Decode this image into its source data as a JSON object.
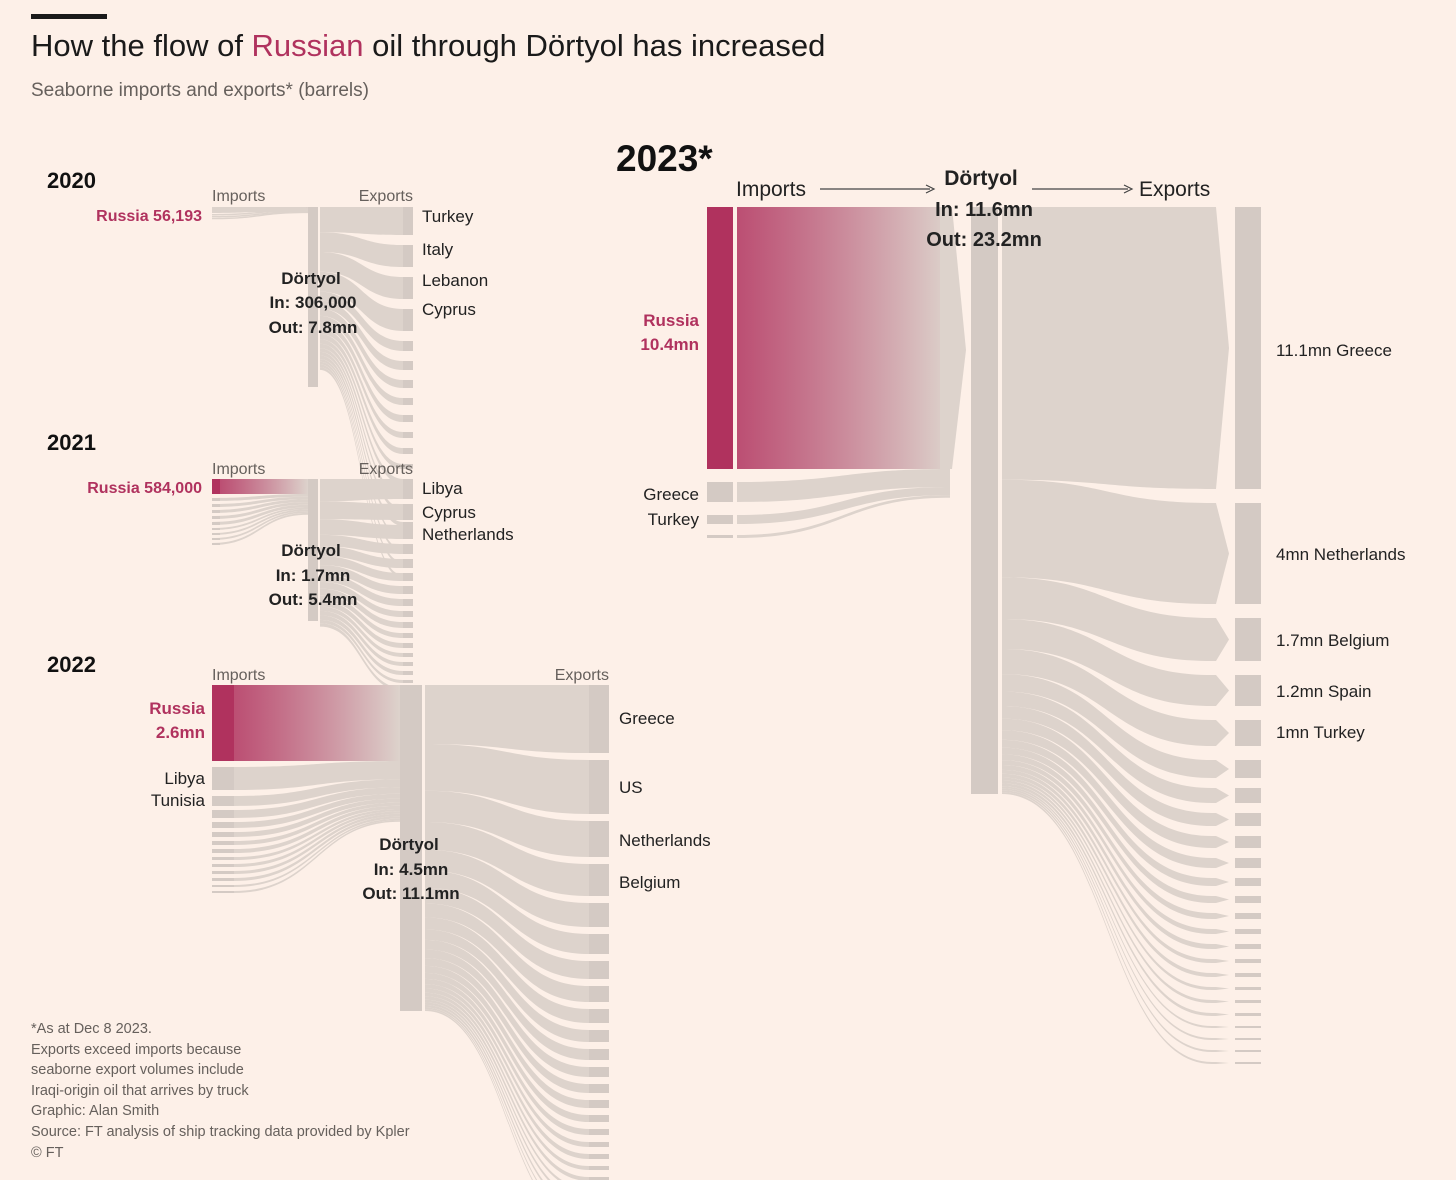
{
  "header": {
    "title_before": "How the flow of ",
    "title_highlight": "Russian",
    "title_after": " oil through Dörtyol has increased",
    "subtitle": "Seaborne imports and exports* (barrels)"
  },
  "footnotes": [
    "*As at Dec 8 2023.",
    "Exports exceed imports because",
    "seaborne export volumes include",
    "Iraqi-origin oil that arrives by truck",
    "Graphic: Alan Smith",
    "Source: FT analysis of ship tracking data provided by Kpler",
    "© FT"
  ],
  "colors": {
    "background": "#fdf0e8",
    "russia": "#b0325e",
    "flow": "#ddd3cc",
    "node": "#d4cac4",
    "text": "#222222",
    "muted": "#66605c"
  },
  "chart_data": [
    {
      "type": "sankey",
      "year": "2020",
      "imports_label": "Imports",
      "exports_label": "Exports",
      "hub": "Dörtyol",
      "hub_in": "In: 306,000",
      "hub_out": "Out: 7.8mn",
      "import_labels": [
        {
          "text": "Russia 56,193",
          "highlight": true
        }
      ],
      "export_labels": [
        "Turkey",
        "Italy",
        "Lebanon",
        "Cyprus"
      ],
      "imports_barrels": {
        "Russia": 56193
      },
      "total_in_barrels": 306000,
      "total_out_barrels": 7800000
    },
    {
      "type": "sankey",
      "year": "2021",
      "imports_label": "Imports",
      "exports_label": "Exports",
      "hub": "Dörtyol",
      "hub_in": "In: 1.7mn",
      "hub_out": "Out: 5.4mn",
      "import_labels": [
        {
          "text": "Russia 584,000",
          "highlight": true
        }
      ],
      "export_labels": [
        "Libya",
        "Cyprus",
        "Netherlands"
      ],
      "imports_barrels": {
        "Russia": 584000
      },
      "total_in_barrels": 1700000,
      "total_out_barrels": 5400000
    },
    {
      "type": "sankey",
      "year": "2022",
      "imports_label": "Imports",
      "exports_label": "Exports",
      "hub": "Dörtyol",
      "hub_in": "In: 4.5mn",
      "hub_out": "Out: 11.1mn",
      "import_labels": [
        {
          "text": "Russia",
          "highlight": true
        },
        {
          "text": "2.6mn",
          "highlight": true
        },
        {
          "text": "Libya",
          "highlight": false
        },
        {
          "text": "Tunisia",
          "highlight": false
        }
      ],
      "export_labels": [
        "Greece",
        "US",
        "Netherlands",
        "Belgium"
      ],
      "imports_barrels": {
        "Russia": 2600000
      },
      "total_in_barrels": 4500000,
      "total_out_barrels": 11100000
    },
    {
      "type": "sankey",
      "year": "2023*",
      "imports_label": "Imports",
      "exports_label": "Exports",
      "hub": "Dörtyol",
      "hub_in": "In: 11.6mn",
      "hub_out": "Out: 23.2mn",
      "import_labels": [
        {
          "text": "Russia",
          "highlight": true
        },
        {
          "text": "10.4mn",
          "highlight": true
        },
        {
          "text": "Greece",
          "highlight": false
        },
        {
          "text": "Turkey",
          "highlight": false
        }
      ],
      "export_labels": [
        "11.1mn Greece",
        "4mn Netherlands",
        "1.7mn Belgium",
        "1.2mn Spain",
        "1mn Turkey"
      ],
      "imports_barrels": {
        "Russia": 10400000
      },
      "exports_barrels": {
        "Greece": 11100000,
        "Netherlands": 4000000,
        "Belgium": 1700000,
        "Spain": 1200000,
        "Turkey": 1000000
      },
      "total_in_barrels": 11600000,
      "total_out_barrels": 23200000
    }
  ]
}
